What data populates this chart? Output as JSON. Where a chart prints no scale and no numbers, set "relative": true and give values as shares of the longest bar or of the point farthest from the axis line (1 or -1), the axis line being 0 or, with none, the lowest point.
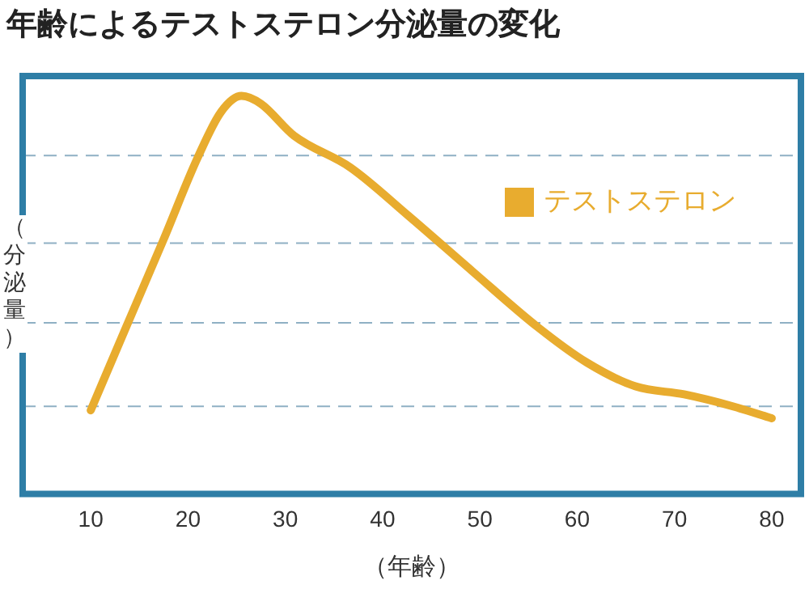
{
  "chart_data": {
    "type": "line",
    "title": "年齢によるテストステロン分泌量の変化",
    "xlabel": "（年齢）",
    "ylabel": "（分泌量）",
    "relative": true,
    "ref_lines": [
      {
        "axis": "y",
        "value": 0.22,
        "color": "#8fb0c4",
        "line_style": "dashed"
      },
      {
        "axis": "y",
        "value": 0.43,
        "color": "#8fb0c4",
        "line_style": "dashed"
      },
      {
        "axis": "y",
        "value": 0.63,
        "color": "#8fb0c4",
        "line_style": "dashed"
      },
      {
        "axis": "y",
        "value": 0.85,
        "color": "#8fb0c4",
        "line_style": "dashed"
      }
    ],
    "legend": "top right",
    "marker": "none",
    "line_style": "solid",
    "xlim": [
      3,
      83
    ],
    "xticks": [
      10,
      20,
      30,
      40,
      50,
      60,
      70,
      80
    ],
    "series": [
      {
        "name": "テストステロン",
        "color": "#e8ac2f",
        "x": [
          10,
          13.3,
          17.5,
          20.9,
          23.4,
          25.5,
          27.5,
          30.9,
          36.7,
          42.6,
          49.2,
          55.9,
          61,
          66,
          71,
          76,
          80
        ],
        "values": [
          0.21,
          0.4,
          0.64,
          0.84,
          0.96,
          1,
          0.98,
          0.9,
          0.82,
          0.7,
          0.56,
          0.42,
          0.33,
          0.27,
          0.25,
          0.22,
          0.19
        ]
      }
    ]
  }
}
